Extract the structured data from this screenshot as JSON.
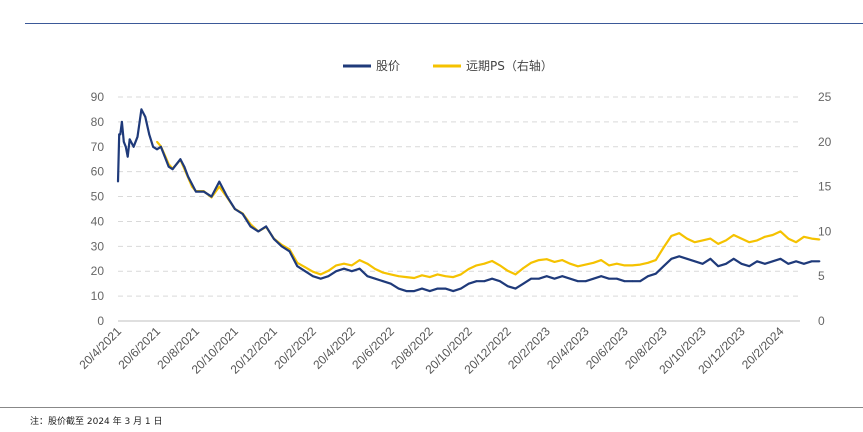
{
  "note": "注：股价截至 2024 年 3 月 1 日",
  "chart_data": {
    "type": "line",
    "title": "",
    "legend_position": "top-center",
    "x_categories": [
      "20/4/2021",
      "20/6/2021",
      "20/8/2021",
      "20/10/2021",
      "20/12/2021",
      "20/2/2022",
      "20/4/2022",
      "20/6/2022",
      "20/8/2022",
      "20/10/2022",
      "20/12/2022",
      "20/2/2023",
      "20/4/2023",
      "20/6/2023",
      "20/8/2023",
      "20/10/2023",
      "20/12/2023",
      "20/2/2024"
    ],
    "y_left": {
      "ticks": [
        0,
        10,
        20,
        30,
        40,
        50,
        60,
        70,
        80,
        90
      ],
      "ylim": [
        0,
        90
      ]
    },
    "y_right": {
      "ticks": [
        0,
        5,
        10,
        15,
        20,
        25
      ],
      "ylim": [
        0,
        25
      ]
    },
    "series": [
      {
        "name": "股价",
        "axis": "left",
        "color": "#1f3a7a",
        "x": [
          0,
          0.03,
          0.06,
          0.1,
          0.15,
          0.2,
          0.25,
          0.3,
          0.4,
          0.5,
          0.6,
          0.7,
          0.8,
          0.9,
          1.0,
          1.1,
          1.2,
          1.3,
          1.4,
          1.5,
          1.6,
          1.7,
          1.8,
          1.9,
          2.0,
          2.2,
          2.4,
          2.6,
          2.8,
          3.0,
          3.2,
          3.4,
          3.6,
          3.8,
          4.0,
          4.2,
          4.4,
          4.6,
          4.8,
          5.0,
          5.2,
          5.4,
          5.6,
          5.8,
          6.0,
          6.2,
          6.4,
          6.6,
          6.8,
          7.0,
          7.2,
          7.4,
          7.6,
          7.8,
          8.0,
          8.2,
          8.4,
          8.6,
          8.8,
          9.0,
          9.2,
          9.4,
          9.6,
          9.8,
          10.0,
          10.2,
          10.4,
          10.6,
          10.8,
          11.0,
          11.2,
          11.4,
          11.6,
          11.8,
          12.0,
          12.2,
          12.4,
          12.6,
          12.8,
          13.0,
          13.2,
          13.4,
          13.6,
          13.8,
          14.0,
          14.2,
          14.4,
          14.6,
          14.8,
          15.0,
          15.2,
          15.4,
          15.6,
          15.8,
          16.0,
          16.2,
          16.4,
          16.6,
          16.8,
          17.0,
          17.2,
          17.4,
          17.6,
          17.8,
          18.0
        ],
        "values": [
          56,
          75,
          75,
          80,
          72,
          70,
          66,
          73,
          70,
          74,
          85,
          82,
          75,
          70,
          69,
          70,
          66,
          62,
          61,
          63,
          65,
          62,
          58,
          55,
          52,
          52,
          50,
          56,
          50,
          45,
          43,
          38,
          36,
          38,
          33,
          30,
          28,
          22,
          20,
          18,
          17,
          18,
          20,
          21,
          20,
          21,
          18,
          17,
          16,
          15,
          13,
          12,
          12,
          13,
          12,
          13,
          13,
          12,
          13,
          15,
          16,
          16,
          17,
          16,
          14,
          13,
          15,
          17,
          17,
          18,
          17,
          18,
          17,
          16,
          16,
          17,
          18,
          17,
          17,
          16,
          16,
          16,
          18,
          19,
          22,
          25,
          26,
          25,
          24,
          23,
          25,
          22,
          23,
          25,
          23,
          22,
          24,
          23,
          24,
          25,
          23,
          24,
          23,
          24,
          24
        ],
        "x_scale": "category_index_over_16.5"
      },
      {
        "name": "远期PS（右轴）",
        "axis": "right",
        "color": "#f5c200",
        "x": [
          1.0,
          1.1,
          1.2,
          1.3,
          1.4,
          1.5,
          1.6,
          1.7,
          1.8,
          1.9,
          2.0,
          2.2,
          2.4,
          2.6,
          2.8,
          3.0,
          3.2,
          3.4,
          3.6,
          3.8,
          4.0,
          4.2,
          4.4,
          4.6,
          4.8,
          5.0,
          5.2,
          5.4,
          5.6,
          5.8,
          6.0,
          6.2,
          6.4,
          6.6,
          6.8,
          7.0,
          7.2,
          7.4,
          7.6,
          7.8,
          8.0,
          8.2,
          8.4,
          8.6,
          8.8,
          9.0,
          9.2,
          9.4,
          9.6,
          9.8,
          10.0,
          10.2,
          10.4,
          10.6,
          10.8,
          11.0,
          11.2,
          11.4,
          11.6,
          11.8,
          12.0,
          12.2,
          12.4,
          12.6,
          12.8,
          13.0,
          13.2,
          13.4,
          13.6,
          13.8,
          14.0,
          14.2,
          14.4,
          14.6,
          14.8,
          15.0,
          15.2,
          15.4,
          15.6,
          15.8,
          16.0,
          16.2,
          16.4,
          16.6,
          16.8,
          17.0,
          17.2,
          17.4,
          17.6,
          17.8,
          18.0
        ],
        "values": [
          20,
          19.5,
          18.5,
          17.5,
          17,
          17.5,
          18,
          17,
          16,
          15,
          14.5,
          14.5,
          13.8,
          15,
          13.8,
          12.5,
          12,
          10.8,
          10,
          10.5,
          9.2,
          8.5,
          8,
          6.5,
          6,
          5.5,
          5.2,
          5.6,
          6.2,
          6.4,
          6.2,
          6.8,
          6.4,
          5.8,
          5.4,
          5.2,
          5,
          4.9,
          4.8,
          5.1,
          4.9,
          5.2,
          5.0,
          4.9,
          5.2,
          5.8,
          6.2,
          6.4,
          6.7,
          6.2,
          5.6,
          5.2,
          5.9,
          6.5,
          6.8,
          6.9,
          6.6,
          6.8,
          6.4,
          6.1,
          6.3,
          6.5,
          6.8,
          6.2,
          6.4,
          6.2,
          6.2,
          6.3,
          6.5,
          6.8,
          8.2,
          9.5,
          9.8,
          9.2,
          8.8,
          9.0,
          9.2,
          8.6,
          9.0,
          9.6,
          9.2,
          8.8,
          9.0,
          9.4,
          9.6,
          10.0,
          9.2,
          8.8,
          9.4,
          9.2,
          9.1
        ]
      }
    ]
  }
}
